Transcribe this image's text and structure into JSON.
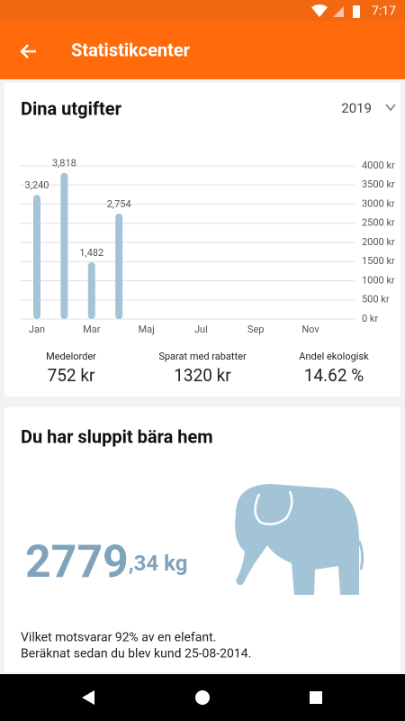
{
  "status_bar": {
    "time": "7:17"
  },
  "app_bar": {
    "title": "Statistikcenter"
  },
  "expenses": {
    "title": "Dina utgifter",
    "year": "2019",
    "stats": [
      {
        "label": "Medelorder",
        "value": "752 kr"
      },
      {
        "label": "Sparat med rabatter",
        "value": "1320 kr"
      },
      {
        "label": "Andel ekologisk",
        "value": "14.62 %"
      }
    ]
  },
  "chart_data": {
    "type": "bar",
    "categories": [
      "Jan",
      null,
      "Mar",
      null,
      "Maj",
      null,
      "Jul",
      null,
      "Sep",
      null,
      "Nov",
      null
    ],
    "values": [
      3240,
      3818,
      1482,
      2754,
      null,
      null,
      null,
      null,
      null,
      null,
      null,
      null
    ],
    "value_labels": [
      "3,240",
      "3,818",
      "1,482",
      "2,754",
      null,
      null,
      null,
      null,
      null,
      null,
      null,
      null
    ],
    "color": "#a3c3d6",
    "ylim": [
      0,
      4000
    ],
    "yticks": [
      {
        "value": 0,
        "label": "0 kr"
      },
      {
        "value": 500,
        "label": "500 kr"
      },
      {
        "value": 1000,
        "label": "1000 kr"
      },
      {
        "value": 1500,
        "label": "1500 kr"
      },
      {
        "value": 2000,
        "label": "2000 kr"
      },
      {
        "value": 2500,
        "label": "2500 kr"
      },
      {
        "value": 3000,
        "label": "3000 kr"
      },
      {
        "value": 3500,
        "label": "3500 kr"
      },
      {
        "value": 4000,
        "label": "4000 kr"
      }
    ],
    "grid": true
  },
  "carried": {
    "title": "Du har sluppit bära hem",
    "amount": "2779",
    "decimals": ",34 kg",
    "lines": [
      "Vilket motsvarar 92% av en elefant.",
      "Beräknat sedan du blev kund 25-08-2014."
    ]
  }
}
